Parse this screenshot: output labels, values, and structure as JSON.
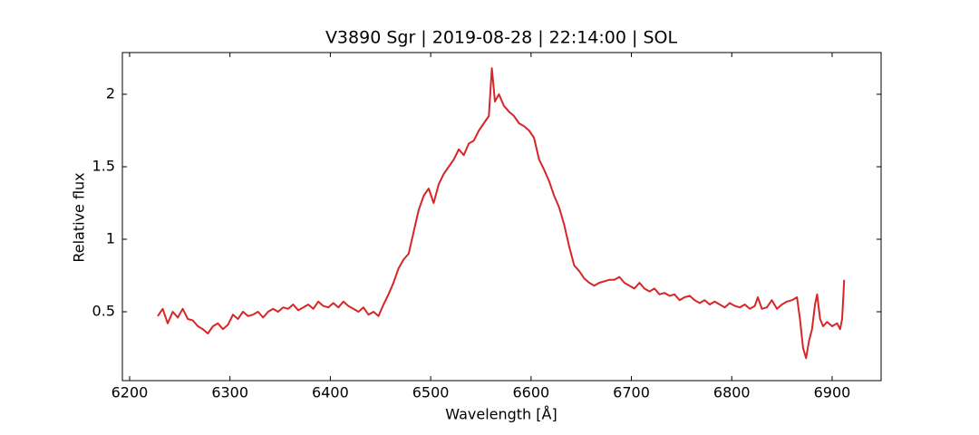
{
  "chart_data": {
    "type": "line",
    "title": "V3890 Sgr | 2019-08-28 | 22:14:00 | SOL",
    "x_label": "Wavelength [Å]",
    "y_label": "Relative flux",
    "xlim": [
      6192.8,
      6948.8
    ],
    "ylim": [
      0.025,
      2.2875
    ],
    "xticks": [
      6200,
      6300,
      6400,
      6500,
      6600,
      6700,
      6800,
      6900
    ],
    "yticks": [
      0.5,
      1.0,
      1.5,
      2.0
    ],
    "grid": false,
    "x": [
      6228,
      6233,
      6238,
      6243,
      6248,
      6253,
      6258,
      6263,
      6268,
      6273,
      6278,
      6283,
      6288,
      6293,
      6298,
      6303,
      6308,
      6313,
      6318,
      6323,
      6328,
      6333,
      6338,
      6343,
      6348,
      6353,
      6358,
      6363,
      6368,
      6373,
      6378,
      6383,
      6388,
      6393,
      6398,
      6403,
      6408,
      6413,
      6418,
      6423,
      6428,
      6433,
      6438,
      6443,
      6448,
      6453,
      6458,
      6463,
      6468,
      6473,
      6478,
      6483,
      6488,
      6493,
      6498,
      6503,
      6508,
      6513,
      6518,
      6523,
      6528,
      6533,
      6538,
      6543,
      6548,
      6553,
      6558,
      6561,
      6564,
      6568,
      6573,
      6578,
      6583,
      6588,
      6593,
      6598,
      6603,
      6608,
      6613,
      6618,
      6623,
      6628,
      6633,
      6638,
      6643,
      6648,
      6653,
      6658,
      6663,
      6668,
      6673,
      6678,
      6683,
      6688,
      6693,
      6698,
      6703,
      6708,
      6713,
      6718,
      6723,
      6728,
      6733,
      6738,
      6743,
      6748,
      6753,
      6758,
      6763,
      6768,
      6773,
      6778,
      6783,
      6788,
      6793,
      6798,
      6803,
      6808,
      6813,
      6818,
      6823,
      6826,
      6830,
      6835,
      6840,
      6845,
      6850,
      6855,
      6860,
      6865,
      6868,
      6871,
      6874,
      6877,
      6880,
      6883,
      6885,
      6888,
      6891,
      6895,
      6900,
      6905,
      6908,
      6910,
      6912
    ],
    "series": [
      {
        "name": "flux",
        "color": "#d62728",
        "values": [
          0.47,
          0.52,
          0.42,
          0.5,
          0.46,
          0.52,
          0.45,
          0.44,
          0.4,
          0.38,
          0.35,
          0.4,
          0.42,
          0.38,
          0.41,
          0.48,
          0.45,
          0.5,
          0.47,
          0.48,
          0.5,
          0.46,
          0.5,
          0.52,
          0.5,
          0.53,
          0.52,
          0.55,
          0.51,
          0.53,
          0.55,
          0.52,
          0.57,
          0.54,
          0.53,
          0.56,
          0.53,
          0.57,
          0.54,
          0.52,
          0.5,
          0.53,
          0.48,
          0.5,
          0.47,
          0.55,
          0.62,
          0.7,
          0.8,
          0.86,
          0.9,
          1.05,
          1.2,
          1.3,
          1.35,
          1.25,
          1.38,
          1.45,
          1.5,
          1.55,
          1.62,
          1.58,
          1.66,
          1.68,
          1.75,
          1.8,
          1.85,
          2.18,
          1.95,
          2.0,
          1.92,
          1.88,
          1.85,
          1.8,
          1.78,
          1.75,
          1.7,
          1.55,
          1.48,
          1.4,
          1.3,
          1.22,
          1.1,
          0.95,
          0.82,
          0.78,
          0.73,
          0.7,
          0.68,
          0.7,
          0.71,
          0.72,
          0.72,
          0.74,
          0.7,
          0.68,
          0.66,
          0.7,
          0.66,
          0.64,
          0.66,
          0.62,
          0.63,
          0.61,
          0.62,
          0.58,
          0.6,
          0.61,
          0.58,
          0.56,
          0.58,
          0.55,
          0.57,
          0.55,
          0.53,
          0.56,
          0.54,
          0.53,
          0.55,
          0.52,
          0.54,
          0.6,
          0.52,
          0.53,
          0.58,
          0.52,
          0.55,
          0.57,
          0.58,
          0.6,
          0.45,
          0.25,
          0.18,
          0.3,
          0.38,
          0.55,
          0.62,
          0.45,
          0.4,
          0.43,
          0.4,
          0.42,
          0.38,
          0.45,
          0.72
        ]
      }
    ]
  }
}
